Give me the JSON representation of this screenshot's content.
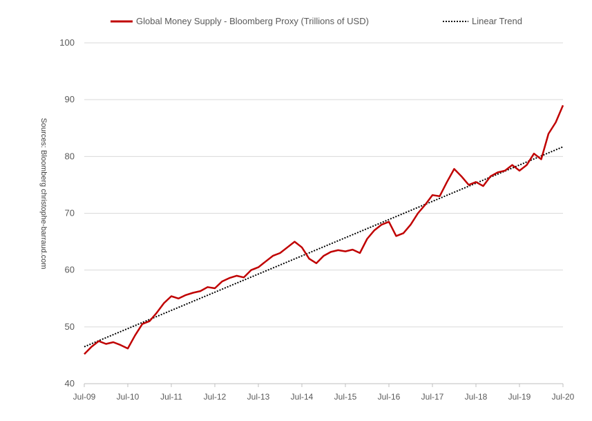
{
  "chart_data": {
    "type": "line",
    "title": "",
    "xlabel": "",
    "ylabel": "",
    "ylim": [
      40,
      100
    ],
    "yticks": [
      40,
      50,
      60,
      70,
      80,
      90,
      100
    ],
    "xlim": [
      "2009-07",
      "2020-07"
    ],
    "xtick_labels": [
      "Jul-09",
      "Jul-10",
      "Jul-11",
      "Jul-12",
      "Jul-13",
      "Jul-14",
      "Jul-15",
      "Jul-16",
      "Jul-17",
      "Jul-18",
      "Jul-19",
      "Jul-20"
    ],
    "grid": "horizontal",
    "legend_position": "top",
    "source_note": "Sources: Bloomberg christophe-barraud.com",
    "series": [
      {
        "name": "Global Money Supply - Bloomberg Proxy (Trillions of USD)",
        "color": "#c00000",
        "style": "solid",
        "x": [
          "2009-07",
          "2009-09",
          "2009-11",
          "2010-01",
          "2010-03",
          "2010-05",
          "2010-07",
          "2010-09",
          "2010-11",
          "2011-01",
          "2011-03",
          "2011-05",
          "2011-07",
          "2011-09",
          "2011-11",
          "2012-01",
          "2012-03",
          "2012-05",
          "2012-07",
          "2012-09",
          "2012-11",
          "2013-01",
          "2013-03",
          "2013-05",
          "2013-07",
          "2013-09",
          "2013-11",
          "2014-01",
          "2014-03",
          "2014-05",
          "2014-07",
          "2014-09",
          "2014-11",
          "2015-01",
          "2015-03",
          "2015-05",
          "2015-07",
          "2015-09",
          "2015-11",
          "2016-01",
          "2016-03",
          "2016-05",
          "2016-07",
          "2016-09",
          "2016-11",
          "2017-01",
          "2017-03",
          "2017-05",
          "2017-07",
          "2017-09",
          "2017-11",
          "2018-01",
          "2018-03",
          "2018-05",
          "2018-07",
          "2018-09",
          "2018-11",
          "2019-01",
          "2019-03",
          "2019-05",
          "2019-07",
          "2019-09",
          "2019-11",
          "2020-01",
          "2020-03",
          "2020-05",
          "2020-07"
        ],
        "values": [
          45.2,
          46.5,
          47.5,
          47.0,
          47.3,
          46.8,
          46.2,
          48.5,
          50.5,
          51.0,
          52.5,
          54.2,
          55.4,
          55.0,
          55.6,
          56.0,
          56.3,
          57.0,
          56.8,
          58.0,
          58.6,
          59.0,
          58.7,
          60.0,
          60.5,
          61.5,
          62.5,
          63.0,
          64.0,
          65.0,
          64.0,
          62.0,
          61.2,
          62.5,
          63.2,
          63.5,
          63.3,
          63.6,
          63.0,
          65.5,
          67.0,
          68.0,
          68.5,
          66.0,
          66.5,
          68.0,
          70.0,
          71.5,
          73.2,
          73.0,
          75.5,
          77.8,
          76.5,
          75.0,
          75.5,
          74.8,
          76.5,
          77.2,
          77.5,
          78.5,
          77.5,
          78.5,
          80.5,
          79.5,
          84.0,
          86.0,
          89.0
        ]
      },
      {
        "name": "Linear Trend",
        "color": "#000000",
        "style": "dotted",
        "x": [
          "2009-07",
          "2020-07"
        ],
        "values": [
          46.5,
          81.7
        ]
      }
    ]
  }
}
